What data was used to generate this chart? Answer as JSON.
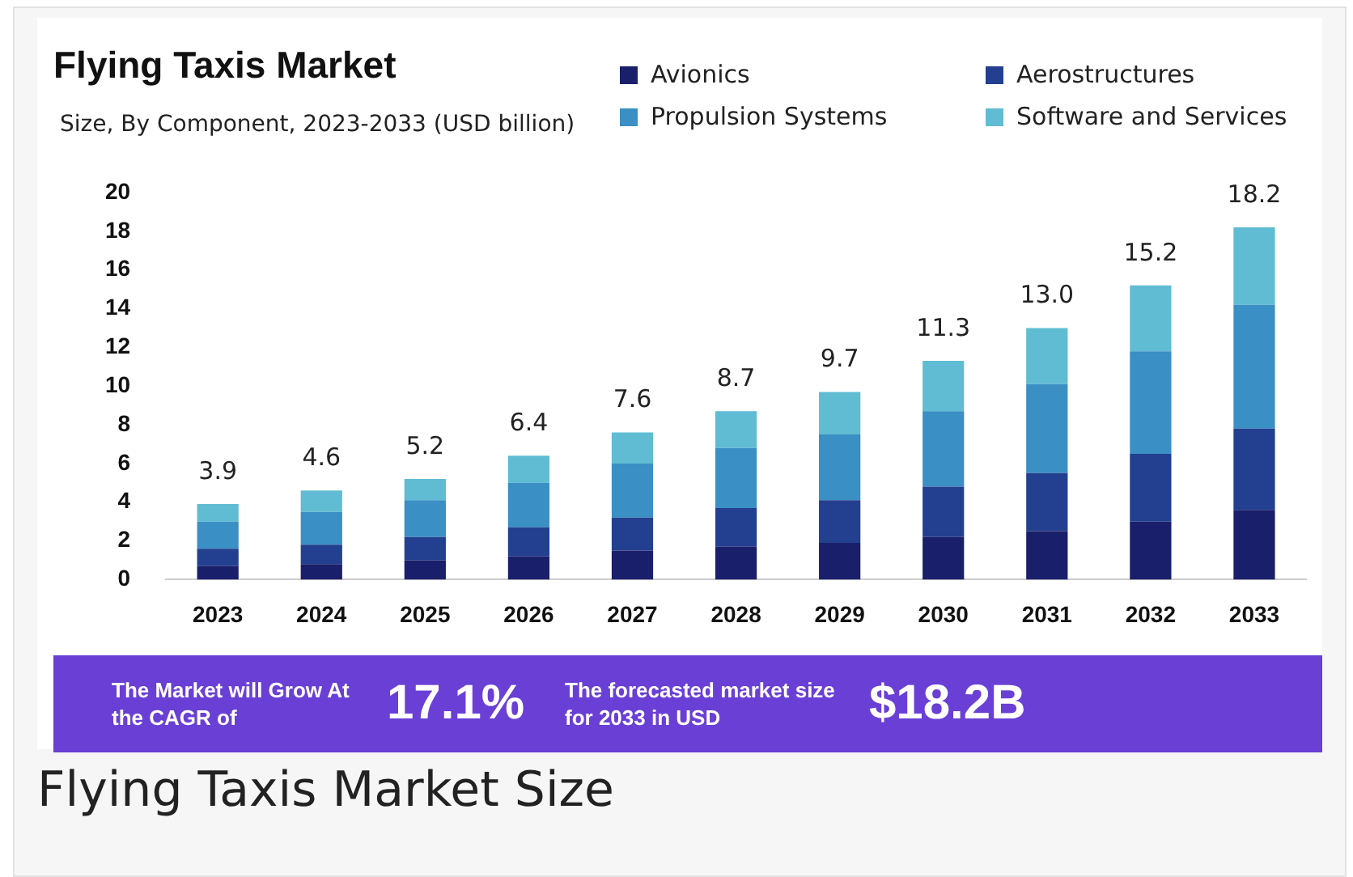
{
  "chart_data": {
    "type": "bar",
    "title": "Flying Taxis Market",
    "subtitle": "Size, By Component, 2023-2033 (USD billion)",
    "categories": [
      "2023",
      "2024",
      "2025",
      "2026",
      "2027",
      "2028",
      "2029",
      "2030",
      "2031",
      "2032",
      "2033"
    ],
    "stacked": true,
    "series": [
      {
        "name": "Avionics",
        "color": "#1a1f6b",
        "values": [
          0.7,
          0.8,
          1.0,
          1.2,
          1.5,
          1.7,
          1.9,
          2.2,
          2.5,
          3.0,
          3.6
        ]
      },
      {
        "name": "Aerostructures",
        "color": "#233f8f",
        "values": [
          0.9,
          1.0,
          1.2,
          1.5,
          1.7,
          2.0,
          2.2,
          2.6,
          3.0,
          3.5,
          4.2
        ]
      },
      {
        "name": "Propulsion Systems",
        "color": "#3a8fc4",
        "values": [
          1.4,
          1.7,
          1.9,
          2.3,
          2.8,
          3.1,
          3.4,
          3.9,
          4.6,
          5.3,
          6.4
        ]
      },
      {
        "name": "Software and Services",
        "color": "#5fbcd3",
        "values": [
          0.9,
          1.1,
          1.1,
          1.4,
          1.6,
          1.9,
          2.2,
          2.6,
          2.9,
          3.4,
          4.0
        ]
      }
    ],
    "totals": [
      "3.9",
      "4.6",
      "5.2",
      "6.4",
      "7.6",
      "8.7",
      "9.7",
      "11.3",
      "13.0",
      "15.2",
      "18.2"
    ],
    "ylim": [
      0,
      20
    ],
    "yticks": [
      0,
      2,
      4,
      6,
      8,
      10,
      12,
      14,
      16,
      18,
      20
    ],
    "grid": false,
    "legend": "top right",
    "annotations": [
      "The Market will Grow At the CAGR of",
      "17.1%",
      "The forecasted market size for 2033 in USD",
      "$18.2B",
      "Flying Taxis Market Size"
    ]
  }
}
